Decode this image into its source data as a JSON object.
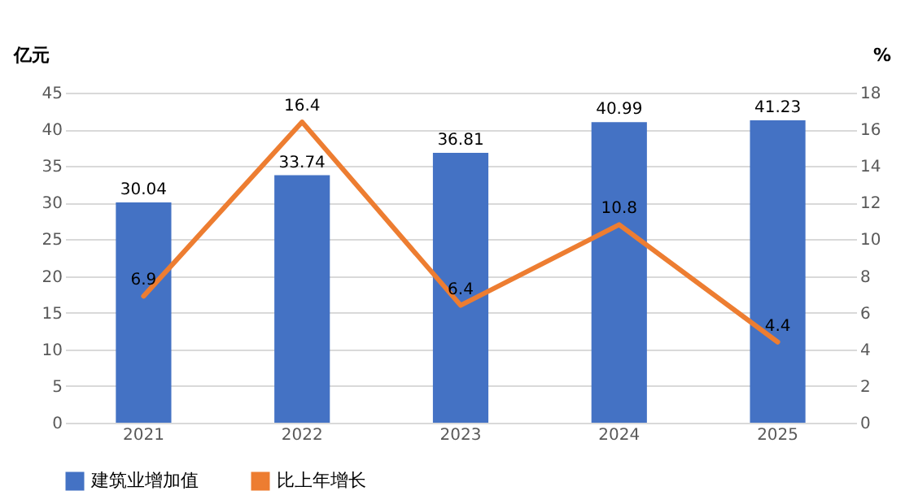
{
  "chart_data": {
    "type": "bar",
    "categories": [
      "2021",
      "2022",
      "2023",
      "2024",
      "2025"
    ],
    "ylabel": "亿元",
    "y2label": "%",
    "series": [
      {
        "name": "建筑业增加值",
        "color": "#4472c4",
        "values": [
          30.04,
          33.74,
          36.81,
          40.99,
          41.23
        ]
      },
      {
        "name": "比上年增长",
        "type": "line",
        "axis": "y2",
        "color": "#ed7d31",
        "values": [
          6.9,
          16.4,
          6.4,
          10.8,
          4.4
        ]
      }
    ],
    "ylim": [
      0,
      45
    ],
    "yticks": [
      0,
      5,
      10,
      15,
      20,
      25,
      30,
      35,
      40,
      45
    ],
    "y2lim": [
      0,
      18
    ],
    "y2ticks": [
      0,
      2,
      4,
      6,
      8,
      10,
      12,
      14,
      16,
      18
    ],
    "grid": "y",
    "legend": "bottom",
    "data_labels": true,
    "marker": "none",
    "line_style": "solid"
  }
}
